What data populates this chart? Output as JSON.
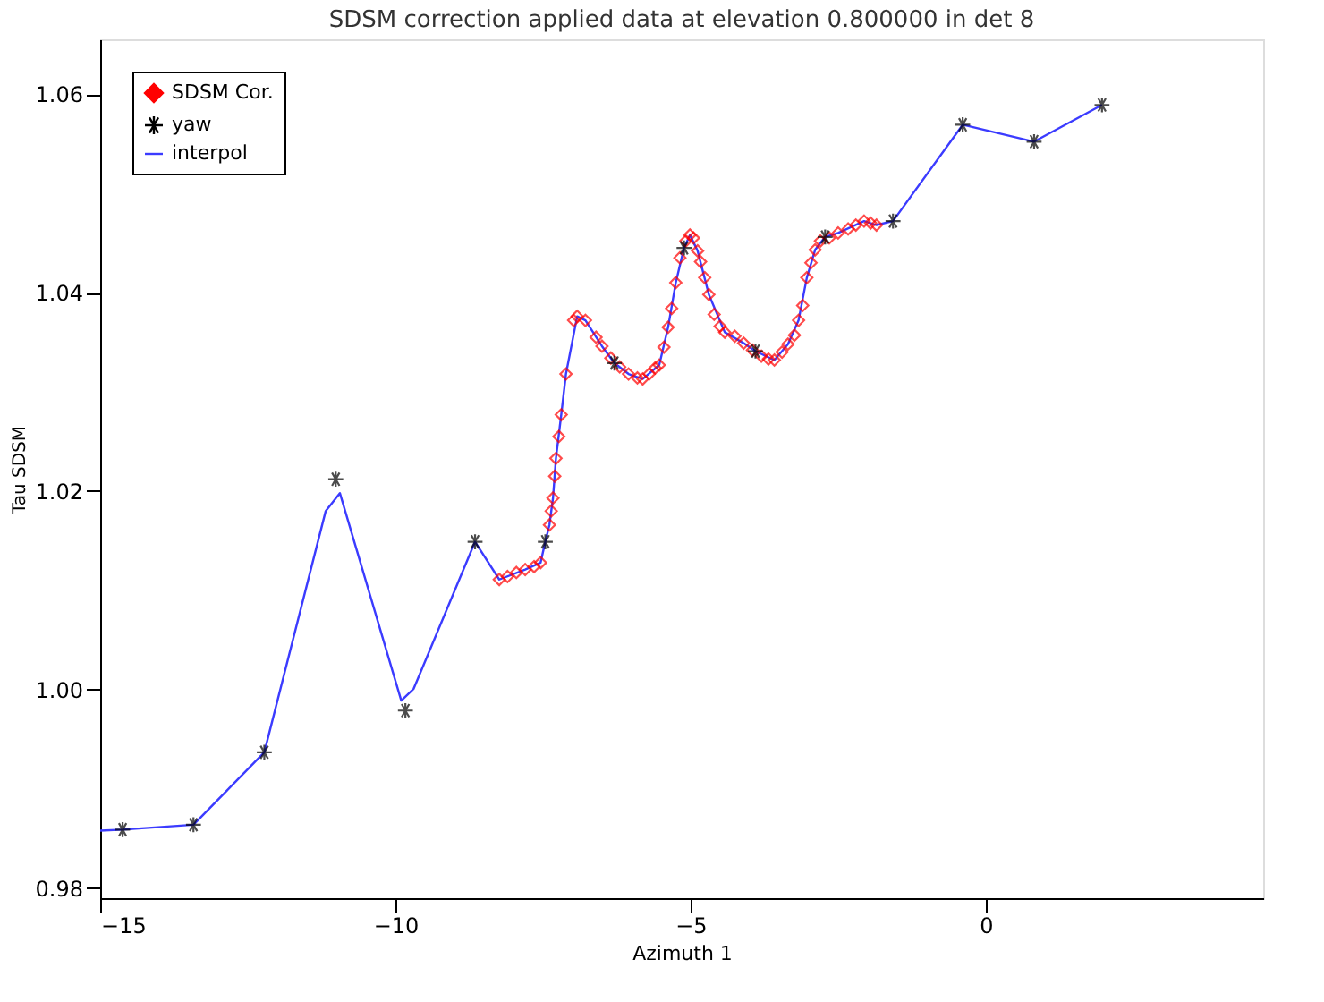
{
  "chart_data": {
    "type": "scatter",
    "title": "SDSM correction applied data at elevation 0.800000 in det 8",
    "xlabel": "Azimuth 1",
    "ylabel": "Tau SDSM",
    "xlim": [
      -15,
      4.7
    ],
    "xticks": [
      -15,
      -10,
      -5,
      0
    ],
    "ylim": [
      0.979,
      1.0655
    ],
    "yticks": [
      0.98,
      {
        "value": 1.0,
        "label": "1.00"
      },
      1.02,
      1.04,
      1.06
    ],
    "grid": false,
    "legend": "top left",
    "series": [
      {
        "name": "SDSM Cor.",
        "marker": "diamond",
        "color": "#ff0000",
        "x": [
          -8.24,
          -8.1,
          -7.95,
          -7.8,
          -7.65,
          -7.54,
          -7.39,
          -7.36,
          -7.33,
          -7.3,
          -7.28,
          -7.23,
          -7.19,
          -7.11,
          -6.98,
          -6.92,
          -6.78,
          -6.6,
          -6.5,
          -6.35,
          -6.2,
          -6.05,
          -5.9,
          -5.81,
          -5.7,
          -5.6,
          -5.53,
          -5.45,
          -5.38,
          -5.32,
          -5.25,
          -5.18,
          -5.08,
          -5.01,
          -4.95,
          -4.88,
          -4.83,
          -4.76,
          -4.69,
          -4.6,
          -4.5,
          -4.42,
          -4.25,
          -4.1,
          -3.95,
          -3.8,
          -3.68,
          -3.58,
          -3.45,
          -3.35,
          -3.24,
          -3.17,
          -3.1,
          -3.03,
          -2.96,
          -2.89,
          -2.8,
          -2.65,
          -2.5,
          -2.33,
          -2.2,
          -2.06,
          -1.95,
          -1.85
        ],
        "values": [
          1.0111,
          1.0114,
          1.0118,
          1.0121,
          1.0124,
          1.0128,
          1.0166,
          1.018,
          1.0193,
          1.0215,
          1.0233,
          1.0255,
          1.0277,
          1.0318,
          1.0372,
          1.0376,
          1.0372,
          1.0355,
          1.0346,
          1.0334,
          1.0325,
          1.0318,
          1.0314,
          1.0313,
          1.0318,
          1.0324,
          1.0327,
          1.0345,
          1.0365,
          1.0384,
          1.041,
          1.0435,
          1.0452,
          1.0458,
          1.0455,
          1.0442,
          1.0431,
          1.0415,
          1.0398,
          1.0378,
          1.0366,
          1.036,
          1.0356,
          1.0349,
          1.0342,
          1.0336,
          1.0333,
          1.0332,
          1.034,
          1.0348,
          1.0357,
          1.0372,
          1.0387,
          1.0415,
          1.043,
          1.0443,
          1.0452,
          1.0455,
          1.046,
          1.0464,
          1.0468,
          1.0472,
          1.047,
          1.0468
        ]
      },
      {
        "name": "yaw",
        "marker": "cross",
        "color": "#000000",
        "x": [
          -14.62,
          -13.42,
          -12.22,
          -11.01,
          -9.83,
          -8.65,
          -7.46,
          -6.29,
          -5.11,
          -3.9,
          -2.72,
          -1.57,
          -0.39,
          0.82,
          1.97
        ],
        "values": [
          0.9859,
          0.9864,
          0.9937,
          1.0212,
          0.9979,
          1.0149,
          1.0149,
          1.0329,
          1.0445,
          1.0341,
          1.0456,
          1.0472,
          1.0569,
          1.0552,
          1.0589
        ]
      },
      {
        "name": "interpol",
        "type": "line",
        "marker": "none",
        "line_style": "solid",
        "color": "#3b3bff",
        "x": [
          -15,
          -14.62,
          -13.42,
          -12.22,
          -11.18,
          -10.94,
          -9.9,
          -9.69,
          -8.65,
          -8.24,
          -7.8,
          -7.54,
          -7.46,
          -7.39,
          -7.33,
          -7.28,
          -7.19,
          -7.11,
          -6.92,
          -6.78,
          -6.5,
          -6.29,
          -6.05,
          -5.81,
          -5.53,
          -5.38,
          -5.25,
          -5.11,
          -5.01,
          -4.88,
          -4.69,
          -4.42,
          -4.1,
          -3.9,
          -3.58,
          -3.35,
          -3.17,
          -3.03,
          -2.89,
          -2.72,
          -2.5,
          -2.06,
          -1.85,
          -1.57,
          -0.39,
          0.82,
          1.97
        ],
        "values": [
          0.9858,
          0.9859,
          0.9864,
          0.9937,
          1.018,
          1.0198,
          0.9989,
          1.0001,
          1.0149,
          1.0111,
          1.0121,
          1.0128,
          1.0149,
          1.0166,
          1.0193,
          1.0233,
          1.0277,
          1.0318,
          1.0376,
          1.0372,
          1.0346,
          1.0329,
          1.0318,
          1.0313,
          1.0327,
          1.0365,
          1.041,
          1.0445,
          1.0458,
          1.0442,
          1.0398,
          1.036,
          1.0349,
          1.0341,
          1.0332,
          1.0348,
          1.0372,
          1.0415,
          1.0443,
          1.0456,
          1.046,
          1.0472,
          1.0468,
          1.0472,
          1.0569,
          1.0552,
          1.0589
        ]
      }
    ]
  }
}
